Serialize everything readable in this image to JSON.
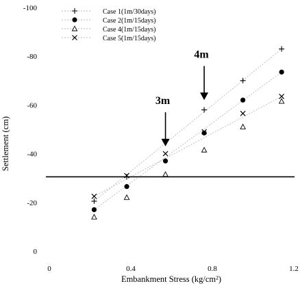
{
  "chart_data": {
    "type": "scatter",
    "xlabel": "Embankment Stress (kg/cm²)",
    "ylabel": "Settlement (cm)",
    "xlim": [
      0,
      1.2
    ],
    "ylim": [
      0,
      -100
    ],
    "x_ticks": [
      {
        "value": 0,
        "label": "0"
      },
      {
        "value": 0.4,
        "label": "0.4"
      },
      {
        "value": 0.8,
        "label": "0.8"
      },
      {
        "value": 1.2,
        "label": "1.2"
      }
    ],
    "y_ticks": [
      {
        "value": 0,
        "label": "0"
      },
      {
        "value": -20,
        "label": "-20"
      },
      {
        "value": -40,
        "label": "-40"
      },
      {
        "value": -60,
        "label": "-60"
      },
      {
        "value": -80,
        "label": "-80"
      },
      {
        "value": -100,
        "label": "-100"
      }
    ],
    "reference_line": {
      "y": -30.5
    },
    "annotations": [
      {
        "text": "3m",
        "x": 0.57,
        "y_top": -57,
        "y_bottom": -43
      },
      {
        "text": "4m",
        "x": 0.76,
        "y_top": -76,
        "y_bottom": -62
      }
    ],
    "series": [
      {
        "name": "Case 1(1m/30days)",
        "marker": "plus",
        "x": [
          0.22,
          0.38,
          0.57,
          0.76,
          0.95,
          1.14
        ],
        "y": [
          -20.5,
          -30.5,
          -45,
          -58,
          -70,
          -83
        ],
        "trend": [
          [
            0.22,
            -20.5
          ],
          [
            1.14,
            -83
          ]
        ]
      },
      {
        "name": "Case 2(1m/15days)",
        "marker": "circle",
        "x": [
          0.22,
          0.38,
          0.57,
          0.76,
          0.95,
          1.14
        ],
        "y": [
          -17,
          -26.5,
          -37,
          -48.5,
          -62,
          -73.5
        ],
        "trend": [
          [
            0.22,
            -17
          ],
          [
            1.14,
            -73.5
          ]
        ]
      },
      {
        "name": "Case 4(1m/15days)",
        "marker": "triangle",
        "x": [
          0.22,
          0.38,
          0.57,
          0.76,
          0.95,
          1.14
        ],
        "y": [
          -14,
          -22,
          -31.5,
          -41.5,
          -51,
          -61.5
        ],
        "trend": null
      },
      {
        "name": "Case 5(1m/15days)",
        "marker": "cross",
        "x": [
          0.22,
          0.38,
          0.57,
          0.76,
          0.95,
          1.14
        ],
        "y": [
          -22.5,
          -31,
          -40,
          -49,
          -56.5,
          -63.5
        ],
        "trend": [
          [
            0.22,
            -22.5
          ],
          [
            1.14,
            -63.5
          ]
        ]
      }
    ]
  }
}
